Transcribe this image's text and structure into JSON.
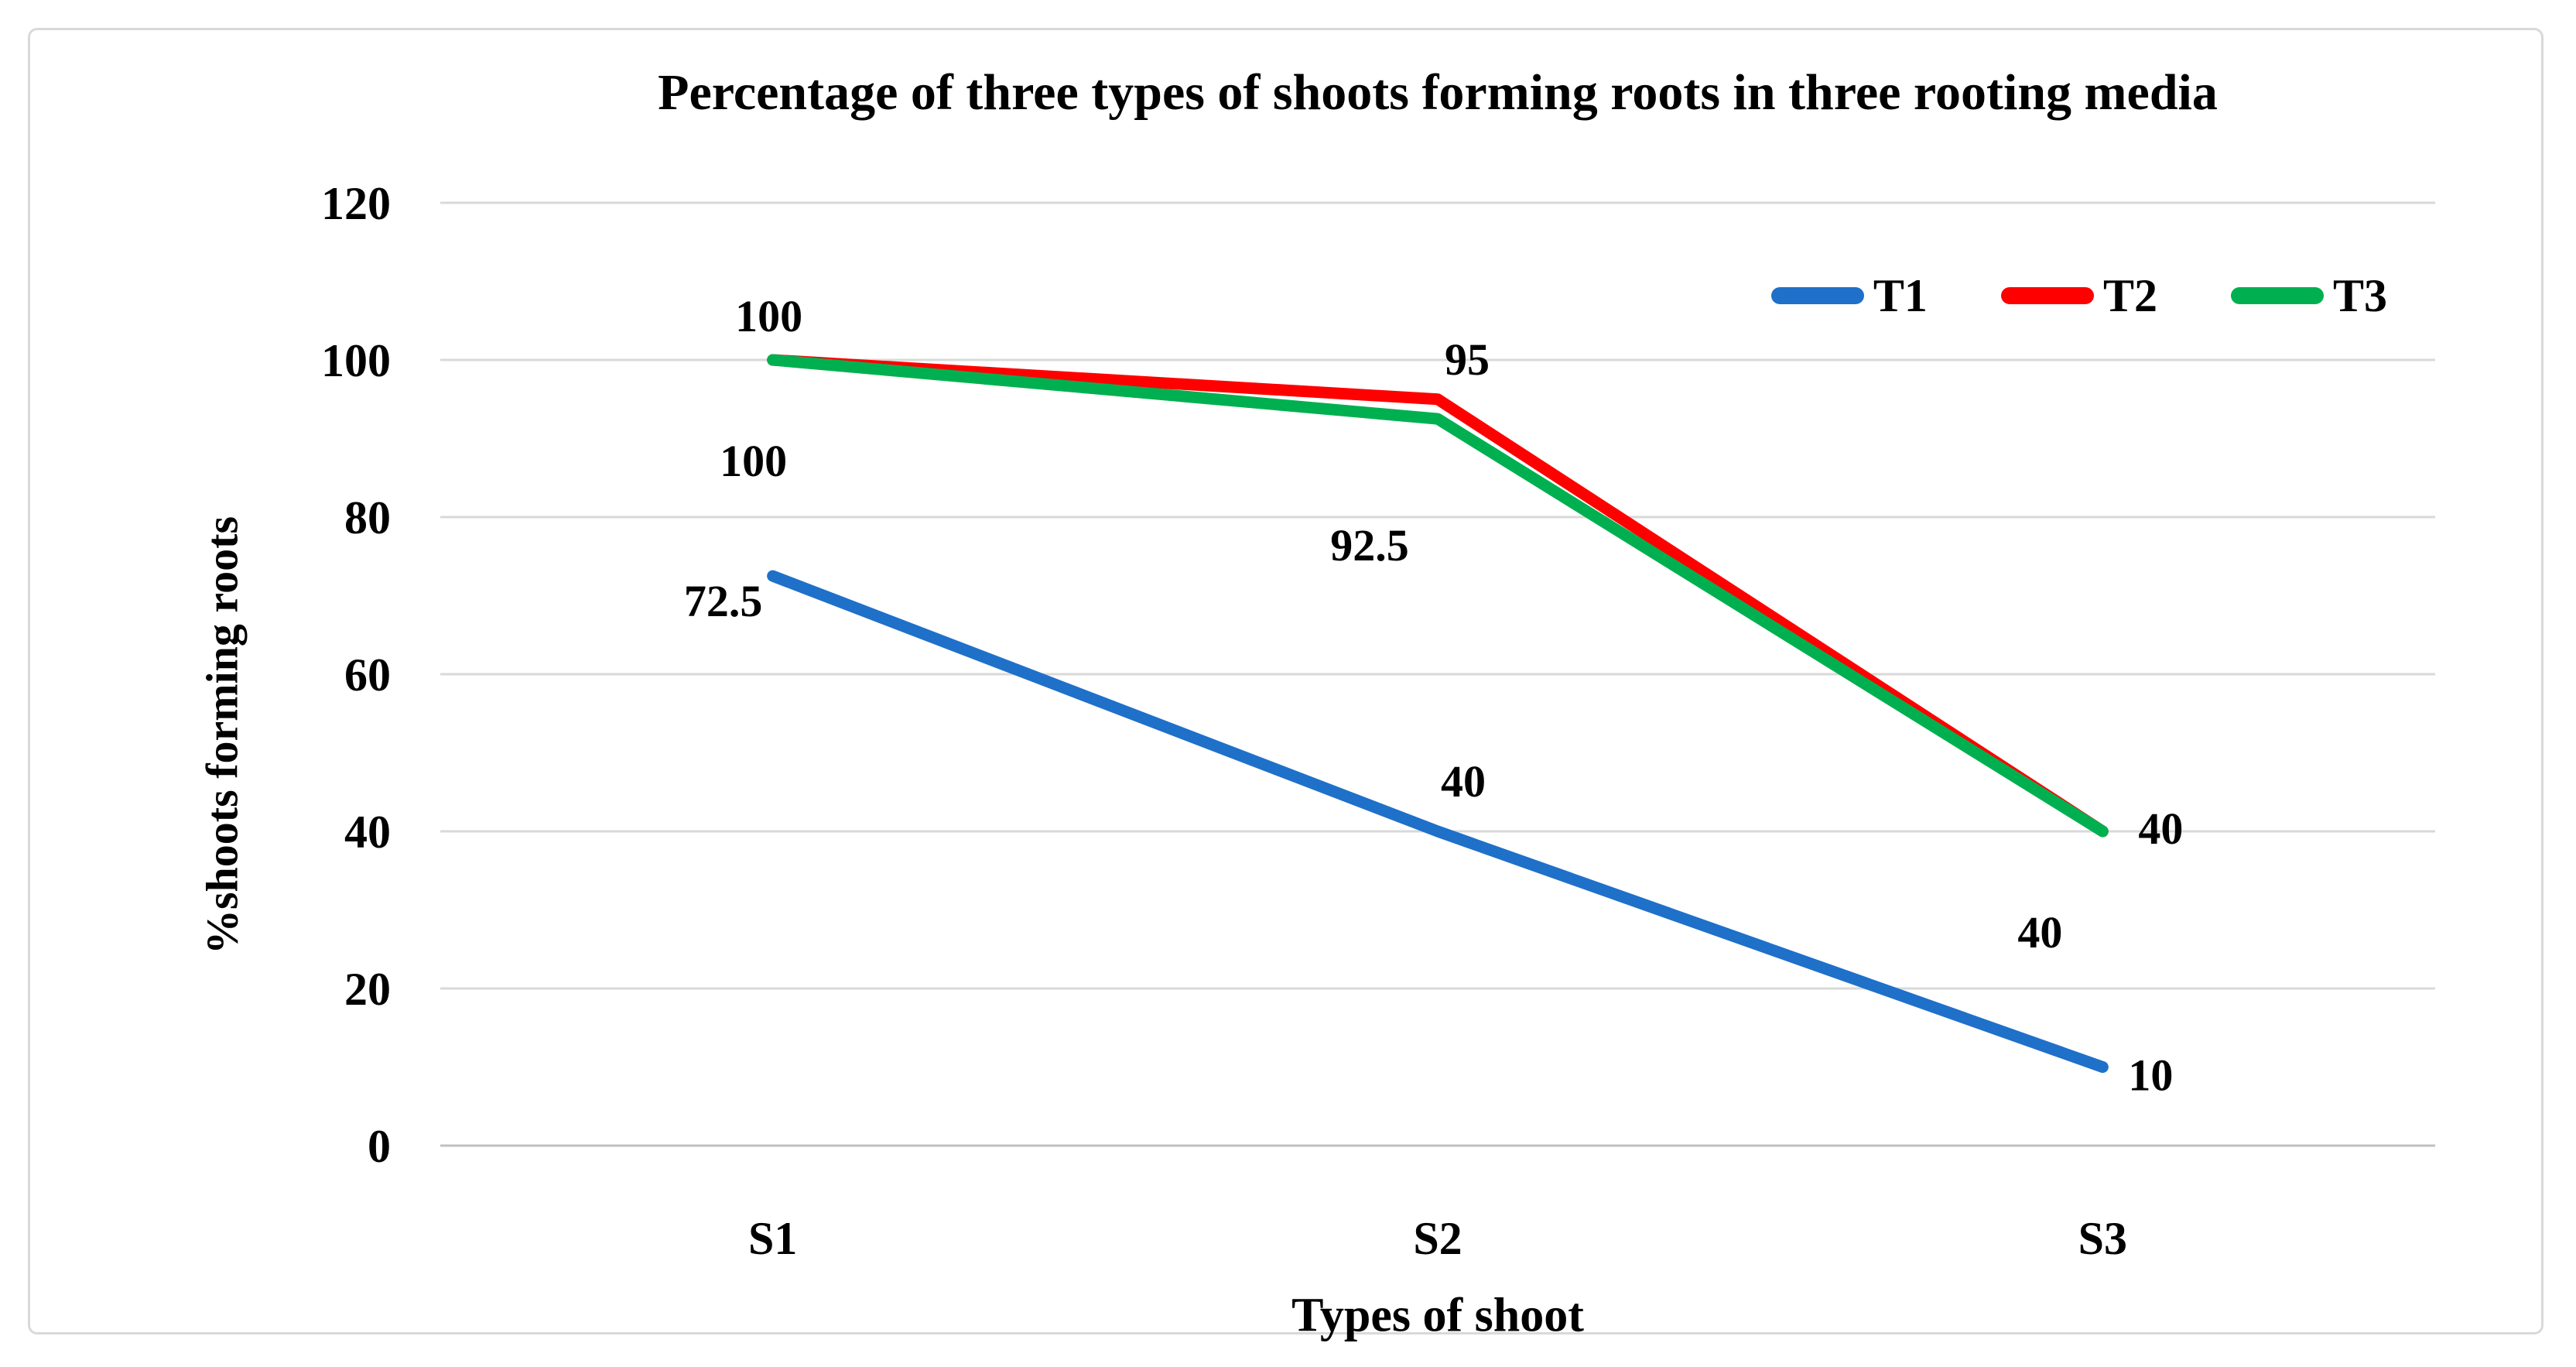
{
  "chart_data": {
    "type": "line",
    "title": "Percentage of three types of shoots forming roots in three rooting media",
    "xlabel": "Types of shoot",
    "ylabel": "%shoots forming roots",
    "categories": [
      "S1",
      "S2",
      "S3"
    ],
    "ylim": [
      0,
      120
    ],
    "ytick_step": 20,
    "grid": "horizontal",
    "legend_position": "top-right-inside",
    "colors": {
      "gridline": "#d9d9d9",
      "axis": "#c0c0c0",
      "frame_border": "#d9d9d9",
      "text": "#000000",
      "background": "#ffffff"
    },
    "series": [
      {
        "name": "T1",
        "color": "#1f70c8",
        "values": [
          72.5,
          40,
          10
        ],
        "point_labels": [
          {
            "text": "72.5",
            "dx": -64,
            "dy": 52
          },
          {
            "text": "40",
            "dx": 33,
            "dy": -45
          },
          {
            "text": "10",
            "dx": 62,
            "dy": 30
          }
        ]
      },
      {
        "name": "T2",
        "color": "#ff0000",
        "values": [
          100,
          95,
          40
        ],
        "point_labels": [
          {
            "text": "100",
            "dx": -5,
            "dy": -37
          },
          {
            "text": "95",
            "dx": 38,
            "dy": -32
          },
          {
            "text": "40",
            "dx": 75,
            "dy": 16
          }
        ]
      },
      {
        "name": "T3",
        "color": "#00b050",
        "values": [
          100,
          92.5,
          40
        ],
        "point_labels": [
          {
            "text": "100",
            "dx": -25,
            "dy": 150
          },
          {
            "text": "92.5",
            "dx": -88,
            "dy": 183
          },
          {
            "text": "40",
            "dx": -81,
            "dy": 150
          }
        ]
      }
    ]
  }
}
